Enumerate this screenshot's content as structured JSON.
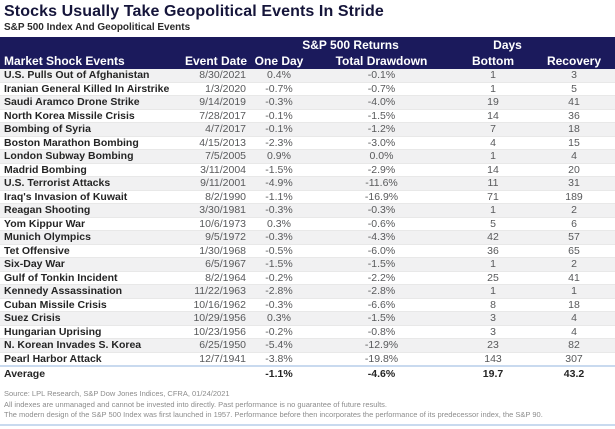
{
  "title": "Stocks Usually Take Geopolitical Events In Stride",
  "subtitle": "S&P 500 Index And Geopolitical Events",
  "colors": {
    "header_bg": "#1b1a5c",
    "title_color": "#15153a",
    "subtitle_color": "#2b2b2b",
    "event_color": "#252525",
    "data_color": "#58595b",
    "stripe": "#f1f1f2",
    "row_border": "#e8e8e8",
    "separator_blue": "#c9daef",
    "footnote_color": "#8c8c8c"
  },
  "chart_data": {
    "type": "table",
    "title": "Stocks Usually Take Geopolitical Events In Stride",
    "subtitle": "S&P 500 Index And Geopolitical Events",
    "group_headers": [
      {
        "label": "S&P 500 Returns",
        "spans": [
          "One Day",
          "Total Drawdown"
        ]
      },
      {
        "label": "Days",
        "spans": [
          "Bottom",
          "Recovery"
        ]
      }
    ],
    "columns": [
      "Market Shock Events",
      "Event Date",
      "One Day",
      "Total Drawdown",
      "Bottom",
      "Recovery"
    ],
    "rows": [
      [
        "U.S. Pulls Out of Afghanistan",
        "8/30/2021",
        "0.4%",
        "-0.1%",
        "1",
        "3"
      ],
      [
        "Iranian General Killed In Airstrike",
        "1/3/2020",
        "-0.7%",
        "-0.7%",
        "1",
        "5"
      ],
      [
        "Saudi Aramco Drone Strike",
        "9/14/2019",
        "-0.3%",
        "-4.0%",
        "19",
        "41"
      ],
      [
        "North Korea Missile Crisis",
        "7/28/2017",
        "-0.1%",
        "-1.5%",
        "14",
        "36"
      ],
      [
        "Bombing of Syria",
        "4/7/2017",
        "-0.1%",
        "-1.2%",
        "7",
        "18"
      ],
      [
        "Boston Marathon Bombing",
        "4/15/2013",
        "-2.3%",
        "-3.0%",
        "4",
        "15"
      ],
      [
        "London Subway Bombing",
        "7/5/2005",
        "0.9%",
        "0.0%",
        "1",
        "4"
      ],
      [
        "Madrid Bombing",
        "3/11/2004",
        "-1.5%",
        "-2.9%",
        "14",
        "20"
      ],
      [
        "U.S. Terrorist Attacks",
        "9/11/2001",
        "-4.9%",
        "-11.6%",
        "11",
        "31"
      ],
      [
        "Iraq's Invasion of Kuwait",
        "8/2/1990",
        "-1.1%",
        "-16.9%",
        "71",
        "189"
      ],
      [
        "Reagan Shooting",
        "3/30/1981",
        "-0.3%",
        "-0.3%",
        "1",
        "2"
      ],
      [
        "Yom Kippur War",
        "10/6/1973",
        "0.3%",
        "-0.6%",
        "5",
        "6"
      ],
      [
        "Munich Olympics",
        "9/5/1972",
        "-0.3%",
        "-4.3%",
        "42",
        "57"
      ],
      [
        "Tet Offensive",
        "1/30/1968",
        "-0.5%",
        "-6.0%",
        "36",
        "65"
      ],
      [
        "Six-Day War",
        "6/5/1967",
        "-1.5%",
        "-1.5%",
        "1",
        "2"
      ],
      [
        "Gulf of Tonkin Incident",
        "8/2/1964",
        "-0.2%",
        "-2.2%",
        "25",
        "41"
      ],
      [
        "Kennedy Assassination",
        "11/22/1963",
        "-2.8%",
        "-2.8%",
        "1",
        "1"
      ],
      [
        "Cuban Missile Crisis",
        "10/16/1962",
        "-0.3%",
        "-6.6%",
        "8",
        "18"
      ],
      [
        "Suez Crisis",
        "10/29/1956",
        "0.3%",
        "-1.5%",
        "3",
        "4"
      ],
      [
        "Hungarian Uprising",
        "10/23/1956",
        "-0.2%",
        "-0.8%",
        "3",
        "4"
      ],
      [
        "N. Korean Invades S. Korea",
        "6/25/1950",
        "-5.4%",
        "-12.9%",
        "23",
        "82"
      ],
      [
        "Pearl Harbor Attack",
        "12/7/1941",
        "-3.8%",
        "-19.8%",
        "143",
        "307"
      ]
    ],
    "average_row": {
      "label": "Average",
      "event_date": "",
      "one_day": "-1.1%",
      "total_drawdown": "-4.6%",
      "bottom": "19.7",
      "recovery": "43.2"
    }
  },
  "notes": [
    "Source: LPL Research, S&P Dow Jones Indices, CFRA, 01/24/2021",
    "All indexes are unmanaged and cannot be invested into directly.  Past performance is no guarantee of future results.",
    "The modern design of the S&P 500 Index was first launched in 1957. Performance before then incorporates the performance of its predecessor index, the S&P 90."
  ]
}
